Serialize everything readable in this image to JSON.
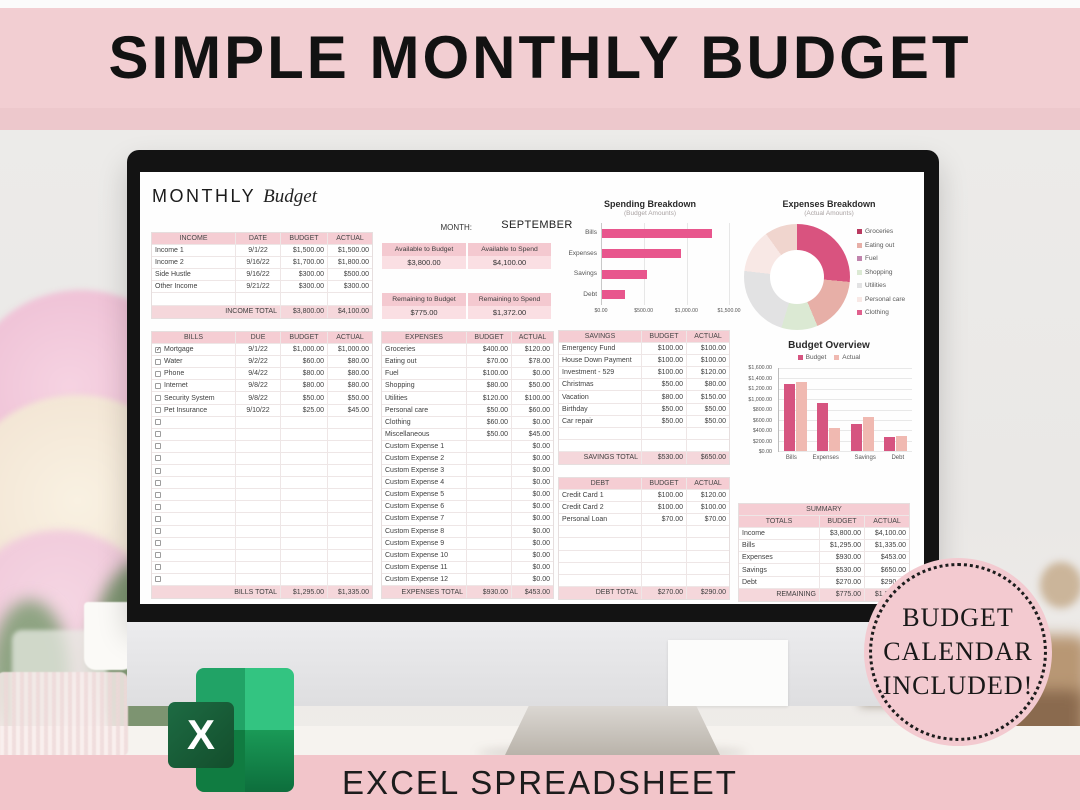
{
  "banner": {
    "title": "SIMPLE MONTHLY BUDGET"
  },
  "footer": {
    "label": "EXCEL SPREADSHEET"
  },
  "badge": {
    "line1": "BUDGET",
    "line2": "CALENDAR",
    "line3": "INCLUDED!"
  },
  "excel_logo": {
    "letter": "X"
  },
  "theme": {
    "pink_banner": "#f2ced2",
    "pink_header": "#f5cdd3",
    "accent_bar": "#e8568d"
  },
  "sheet": {
    "title_main": "MONTHLY",
    "title_script": "Budget",
    "month_label": "MONTH:",
    "month_value": "SEPTEMBER",
    "kpis": {
      "available_budget": {
        "label": "Available to Budget",
        "value": "$3,800.00"
      },
      "available_spend": {
        "label": "Available to Spend",
        "value": "$4,100.00"
      },
      "remaining_budget": {
        "label": "Remaining to Budget",
        "value": "$775.00"
      },
      "remaining_spend": {
        "label": "Remaining to Spend",
        "value": "$1,372.00"
      }
    },
    "tables": {
      "income": {
        "headers": [
          "INCOME",
          "DATE",
          "BUDGET",
          "ACTUAL"
        ],
        "rows": [
          [
            "Income 1",
            "9/1/22",
            "$1,500.00",
            "$1,500.00"
          ],
          [
            "Income 2",
            "9/16/22",
            "$1,700.00",
            "$1,800.00"
          ],
          [
            "Side Hustle",
            "9/16/22",
            "$300.00",
            "$500.00"
          ],
          [
            "Other Income",
            "9/21/22",
            "$300.00",
            "$300.00"
          ]
        ],
        "empty_rows": 1,
        "total": [
          "INCOME TOTAL",
          "$3,800.00",
          "$4,100.00"
        ]
      },
      "bills": {
        "headers": [
          "BILLS",
          "DUE",
          "BUDGET",
          "ACTUAL"
        ],
        "checkbox": true,
        "checked_row": 0,
        "rows": [
          [
            "Mortgage",
            "9/1/22",
            "$1,000.00",
            "$1,000.00"
          ],
          [
            "Water",
            "9/2/22",
            "$60.00",
            "$80.00"
          ],
          [
            "Phone",
            "9/4/22",
            "$80.00",
            "$80.00"
          ],
          [
            "Internet",
            "9/8/22",
            "$80.00",
            "$80.00"
          ],
          [
            "Security System",
            "9/8/22",
            "$50.00",
            "$50.00"
          ],
          [
            "Pet Insurance",
            "9/10/22",
            "$25.00",
            "$45.00"
          ]
        ],
        "empty_rows": 14,
        "total": [
          "BILLS TOTAL",
          "$1,295.00",
          "$1,335.00"
        ]
      },
      "expenses": {
        "headers": [
          "EXPENSES",
          "BUDGET",
          "ACTUAL"
        ],
        "rows": [
          [
            "Groceries",
            "$400.00",
            "$120.00"
          ],
          [
            "Eating out",
            "$70.00",
            "$78.00"
          ],
          [
            "Fuel",
            "$100.00",
            "$0.00"
          ],
          [
            "Shopping",
            "$80.00",
            "$50.00"
          ],
          [
            "Utilities",
            "$120.00",
            "$100.00"
          ],
          [
            "Personal care",
            "$50.00",
            "$60.00"
          ],
          [
            "Clothing",
            "$60.00",
            "$0.00"
          ],
          [
            "Miscellaneous",
            "$50.00",
            "$45.00"
          ],
          [
            "Custom Expense 1",
            "",
            "$0.00"
          ],
          [
            "Custom Expense 2",
            "",
            "$0.00"
          ],
          [
            "Custom Expense 3",
            "",
            "$0.00"
          ],
          [
            "Custom Expense 4",
            "",
            "$0.00"
          ],
          [
            "Custom Expense 5",
            "",
            "$0.00"
          ],
          [
            "Custom Expense 6",
            "",
            "$0.00"
          ],
          [
            "Custom Expense 7",
            "",
            "$0.00"
          ],
          [
            "Custom Expense 8",
            "",
            "$0.00"
          ],
          [
            "Custom Expense 9",
            "",
            "$0.00"
          ],
          [
            "Custom Expense 10",
            "",
            "$0.00"
          ],
          [
            "Custom Expense 11",
            "",
            "$0.00"
          ],
          [
            "Custom Expense 12",
            "",
            "$0.00"
          ]
        ],
        "empty_rows": 0,
        "total": [
          "EXPENSES TOTAL",
          "$930.00",
          "$453.00"
        ]
      },
      "savings": {
        "headers": [
          "SAVINGS",
          "BUDGET",
          "ACTUAL"
        ],
        "rows": [
          [
            "Emergency Fund",
            "$100.00",
            "$100.00"
          ],
          [
            "House Down Payment",
            "$100.00",
            "$100.00"
          ],
          [
            "Investment - 529",
            "$100.00",
            "$120.00"
          ],
          [
            "Christmas",
            "$50.00",
            "$80.00"
          ],
          [
            "Vacation",
            "$80.00",
            "$150.00"
          ],
          [
            "Birthday",
            "$50.00",
            "$50.00"
          ],
          [
            "Car repair",
            "$50.00",
            "$50.00"
          ]
        ],
        "empty_rows": 2,
        "total": [
          "SAVINGS TOTAL",
          "$530.00",
          "$650.00"
        ]
      },
      "debt": {
        "headers": [
          "DEBT",
          "BUDGET",
          "ACTUAL"
        ],
        "rows": [
          [
            "Credit Card 1",
            "$100.00",
            "$120.00"
          ],
          [
            "Credit Card 2",
            "$100.00",
            "$100.00"
          ],
          [
            "Personal Loan",
            "$70.00",
            "$70.00"
          ]
        ],
        "empty_rows": 5,
        "total": [
          "DEBT TOTAL",
          "$270.00",
          "$290.00"
        ]
      },
      "summary": {
        "title": "SUMMARY",
        "headers": [
          "TOTALS",
          "BUDGET",
          "ACTUAL"
        ],
        "rows": [
          [
            "Income",
            "$3,800.00",
            "$4,100.00"
          ],
          [
            "Bills",
            "$1,295.00",
            "$1,335.00"
          ],
          [
            "Expenses",
            "$930.00",
            "$453.00"
          ],
          [
            "Savings",
            "$530.00",
            "$650.00"
          ],
          [
            "Debt",
            "$270.00",
            "$290.00"
          ]
        ],
        "empty_rows": 0,
        "total": [
          "REMAINING",
          "$775.00",
          "$1,372.00"
        ]
      }
    }
  },
  "chart_data": [
    {
      "type": "bar",
      "orientation": "horizontal",
      "title": "Spending Breakdown",
      "subtitle": "(Budget Amounts)",
      "categories": [
        "Bills",
        "Expenses",
        "Savings",
        "Debt"
      ],
      "values": [
        1295,
        930,
        530,
        270
      ],
      "xlim": [
        0,
        1500
      ],
      "x_ticks": [
        "$0.00",
        "$500.00",
        "$1,000.00",
        "$1,500.00"
      ],
      "bar_color": "#e8568d",
      "grid": true,
      "legend_position": "none"
    },
    {
      "type": "pie",
      "donut": true,
      "title": "Expenses Breakdown",
      "subtitle": "(Actual Amounts)",
      "slices": [
        {
          "label": "Groceries",
          "value": 120,
          "color": "#d9537f",
          "legend_color": "#b93a60"
        },
        {
          "label": "Eating out",
          "value": 78,
          "color": "#e7afa7"
        },
        {
          "label": "Fuel",
          "value": 0,
          "color": "#c184ad"
        },
        {
          "label": "Shopping",
          "value": 50,
          "color": "#dbe9d3"
        },
        {
          "label": "Utilities",
          "value": 100,
          "color": "#e2e2e3"
        },
        {
          "label": "Personal care",
          "value": 60,
          "color": "#f8e8e5"
        },
        {
          "label": "Clothing",
          "value": 0,
          "color": "#e0608d"
        },
        {
          "label": "Miscellaneous",
          "value": 45,
          "color": "#f0d5ce",
          "in_legend": false
        }
      ],
      "legend_position": "right"
    },
    {
      "type": "bar",
      "orientation": "vertical",
      "title": "Budget Overview",
      "categories": [
        "Bills",
        "Expenses",
        "Savings",
        "Debt"
      ],
      "series": [
        {
          "name": "Budget",
          "color": "#d65480",
          "values": [
            1295,
            930,
            530,
            270
          ]
        },
        {
          "name": "Actual",
          "color": "#f0b9b1",
          "values": [
            1335,
            453,
            650,
            290
          ]
        }
      ],
      "ylim": [
        0,
        1600
      ],
      "y_ticks": [
        "$1,600.00",
        "$1,400.00",
        "$1,200.00",
        "$1,000.00",
        "$800.00",
        "$600.00",
        "$400.00",
        "$200.00",
        "$0.00"
      ],
      "grid": true,
      "legend_position": "top"
    }
  ]
}
